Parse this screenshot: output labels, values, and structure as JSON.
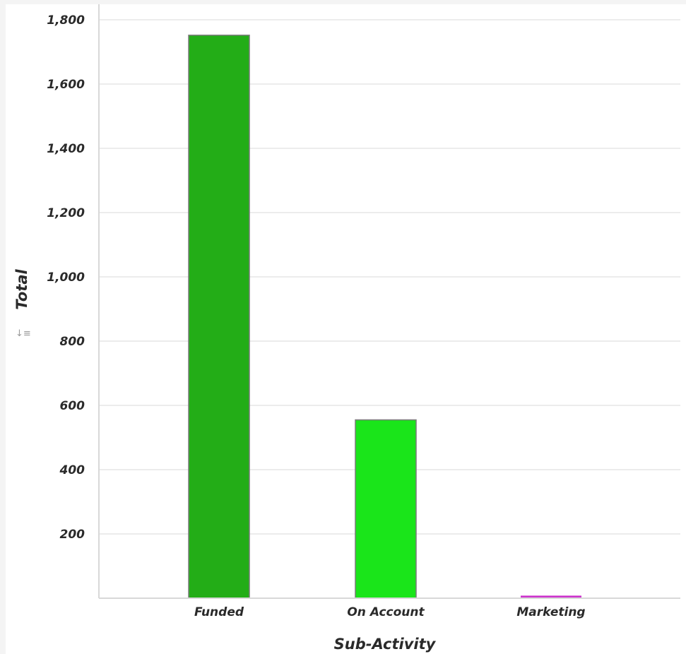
{
  "chart_data": {
    "type": "bar",
    "title": "",
    "xlabel": "Sub-Activity",
    "ylabel": "Total",
    "categories": [
      "Funded",
      "On Account",
      "Marketing"
    ],
    "values": [
      1752,
      555,
      8
    ],
    "colors": [
      "#23ad17",
      "#1ae51a",
      "#cc33cc"
    ],
    "yticks": [
      200,
      400,
      600,
      800,
      1000,
      1200,
      1400,
      1600,
      1800
    ],
    "ytick_labels": [
      "200",
      "400",
      "600",
      "800",
      "1,000",
      "1,200",
      "1,400",
      "1,600",
      "1,800"
    ],
    "ylim": [
      0,
      1800
    ],
    "grid": true,
    "legend": "none"
  },
  "controls": {
    "sort_icon": "sort-icon"
  }
}
